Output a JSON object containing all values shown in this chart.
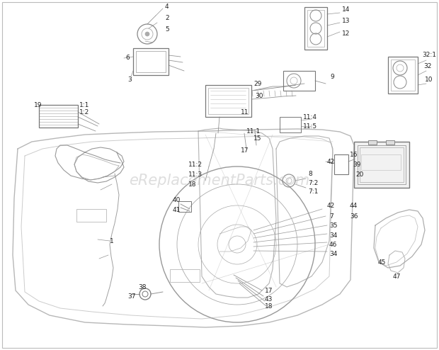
{
  "bg_color": "#ffffff",
  "fig_width": 6.2,
  "fig_height": 4.94,
  "dpi": 100,
  "watermark": "eReplacementParts.com",
  "watermark_color": "#c8c8c8",
  "watermark_alpha": 0.6,
  "watermark_fontsize": 15,
  "lc": "#7a7a7a",
  "lc2": "#555555",
  "label_color": "#222222",
  "lfs": 6.5,
  "border_color": "#bbbbbb"
}
